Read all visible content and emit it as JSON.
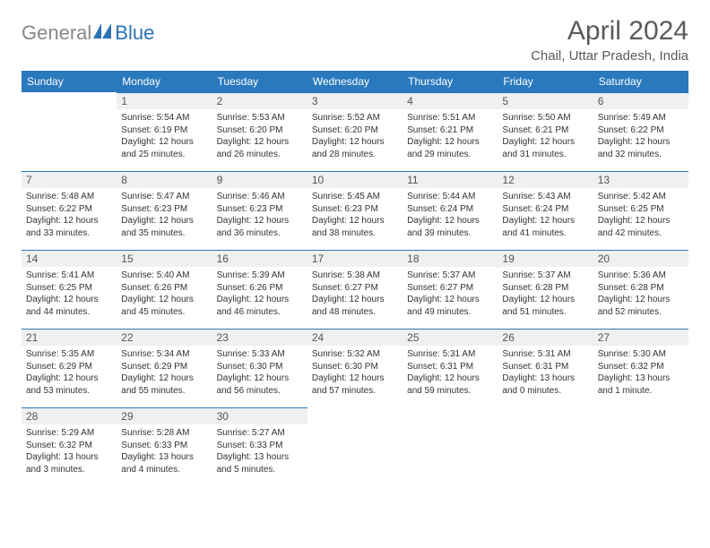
{
  "logo": {
    "gray": "General",
    "blue": "Blue"
  },
  "title": "April 2024",
  "location": "Chail, Uttar Pradesh, India",
  "colors": {
    "header_bg": "#2a79bd",
    "header_text": "#ffffff",
    "rule": "#2a79bd",
    "daynum_bg": "#eef0f2",
    "body_text": "#333333",
    "title_text": "#5a5a5a",
    "logo_gray": "#888888",
    "logo_blue": "#2a72b5",
    "page_bg": "#ffffff"
  },
  "layout": {
    "columns": 7,
    "rows": 5,
    "first_weekday_offset": 1,
    "fonts": {
      "title_pt": 30,
      "location_pt": 15,
      "dayhead_pt": 12,
      "daynum_pt": 12,
      "daydata_pt": 10
    }
  },
  "weekdays": [
    "Sunday",
    "Monday",
    "Tuesday",
    "Wednesday",
    "Thursday",
    "Friday",
    "Saturday"
  ],
  "days": [
    {
      "n": 1,
      "sunrise": "5:54 AM",
      "sunset": "6:19 PM",
      "daylight": "12 hours and 25 minutes."
    },
    {
      "n": 2,
      "sunrise": "5:53 AM",
      "sunset": "6:20 PM",
      "daylight": "12 hours and 26 minutes."
    },
    {
      "n": 3,
      "sunrise": "5:52 AM",
      "sunset": "6:20 PM",
      "daylight": "12 hours and 28 minutes."
    },
    {
      "n": 4,
      "sunrise": "5:51 AM",
      "sunset": "6:21 PM",
      "daylight": "12 hours and 29 minutes."
    },
    {
      "n": 5,
      "sunrise": "5:50 AM",
      "sunset": "6:21 PM",
      "daylight": "12 hours and 31 minutes."
    },
    {
      "n": 6,
      "sunrise": "5:49 AM",
      "sunset": "6:22 PM",
      "daylight": "12 hours and 32 minutes."
    },
    {
      "n": 7,
      "sunrise": "5:48 AM",
      "sunset": "6:22 PM",
      "daylight": "12 hours and 33 minutes."
    },
    {
      "n": 8,
      "sunrise": "5:47 AM",
      "sunset": "6:23 PM",
      "daylight": "12 hours and 35 minutes."
    },
    {
      "n": 9,
      "sunrise": "5:46 AM",
      "sunset": "6:23 PM",
      "daylight": "12 hours and 36 minutes."
    },
    {
      "n": 10,
      "sunrise": "5:45 AM",
      "sunset": "6:23 PM",
      "daylight": "12 hours and 38 minutes."
    },
    {
      "n": 11,
      "sunrise": "5:44 AM",
      "sunset": "6:24 PM",
      "daylight": "12 hours and 39 minutes."
    },
    {
      "n": 12,
      "sunrise": "5:43 AM",
      "sunset": "6:24 PM",
      "daylight": "12 hours and 41 minutes."
    },
    {
      "n": 13,
      "sunrise": "5:42 AM",
      "sunset": "6:25 PM",
      "daylight": "12 hours and 42 minutes."
    },
    {
      "n": 14,
      "sunrise": "5:41 AM",
      "sunset": "6:25 PM",
      "daylight": "12 hours and 44 minutes."
    },
    {
      "n": 15,
      "sunrise": "5:40 AM",
      "sunset": "6:26 PM",
      "daylight": "12 hours and 45 minutes."
    },
    {
      "n": 16,
      "sunrise": "5:39 AM",
      "sunset": "6:26 PM",
      "daylight": "12 hours and 46 minutes."
    },
    {
      "n": 17,
      "sunrise": "5:38 AM",
      "sunset": "6:27 PM",
      "daylight": "12 hours and 48 minutes."
    },
    {
      "n": 18,
      "sunrise": "5:37 AM",
      "sunset": "6:27 PM",
      "daylight": "12 hours and 49 minutes."
    },
    {
      "n": 19,
      "sunrise": "5:37 AM",
      "sunset": "6:28 PM",
      "daylight": "12 hours and 51 minutes."
    },
    {
      "n": 20,
      "sunrise": "5:36 AM",
      "sunset": "6:28 PM",
      "daylight": "12 hours and 52 minutes."
    },
    {
      "n": 21,
      "sunrise": "5:35 AM",
      "sunset": "6:29 PM",
      "daylight": "12 hours and 53 minutes."
    },
    {
      "n": 22,
      "sunrise": "5:34 AM",
      "sunset": "6:29 PM",
      "daylight": "12 hours and 55 minutes."
    },
    {
      "n": 23,
      "sunrise": "5:33 AM",
      "sunset": "6:30 PM",
      "daylight": "12 hours and 56 minutes."
    },
    {
      "n": 24,
      "sunrise": "5:32 AM",
      "sunset": "6:30 PM",
      "daylight": "12 hours and 57 minutes."
    },
    {
      "n": 25,
      "sunrise": "5:31 AM",
      "sunset": "6:31 PM",
      "daylight": "12 hours and 59 minutes."
    },
    {
      "n": 26,
      "sunrise": "5:31 AM",
      "sunset": "6:31 PM",
      "daylight": "13 hours and 0 minutes."
    },
    {
      "n": 27,
      "sunrise": "5:30 AM",
      "sunset": "6:32 PM",
      "daylight": "13 hours and 1 minute."
    },
    {
      "n": 28,
      "sunrise": "5:29 AM",
      "sunset": "6:32 PM",
      "daylight": "13 hours and 3 minutes."
    },
    {
      "n": 29,
      "sunrise": "5:28 AM",
      "sunset": "6:33 PM",
      "daylight": "13 hours and 4 minutes."
    },
    {
      "n": 30,
      "sunrise": "5:27 AM",
      "sunset": "6:33 PM",
      "daylight": "13 hours and 5 minutes."
    }
  ],
  "labels": {
    "sunrise": "Sunrise:",
    "sunset": "Sunset:",
    "daylight": "Daylight:"
  }
}
